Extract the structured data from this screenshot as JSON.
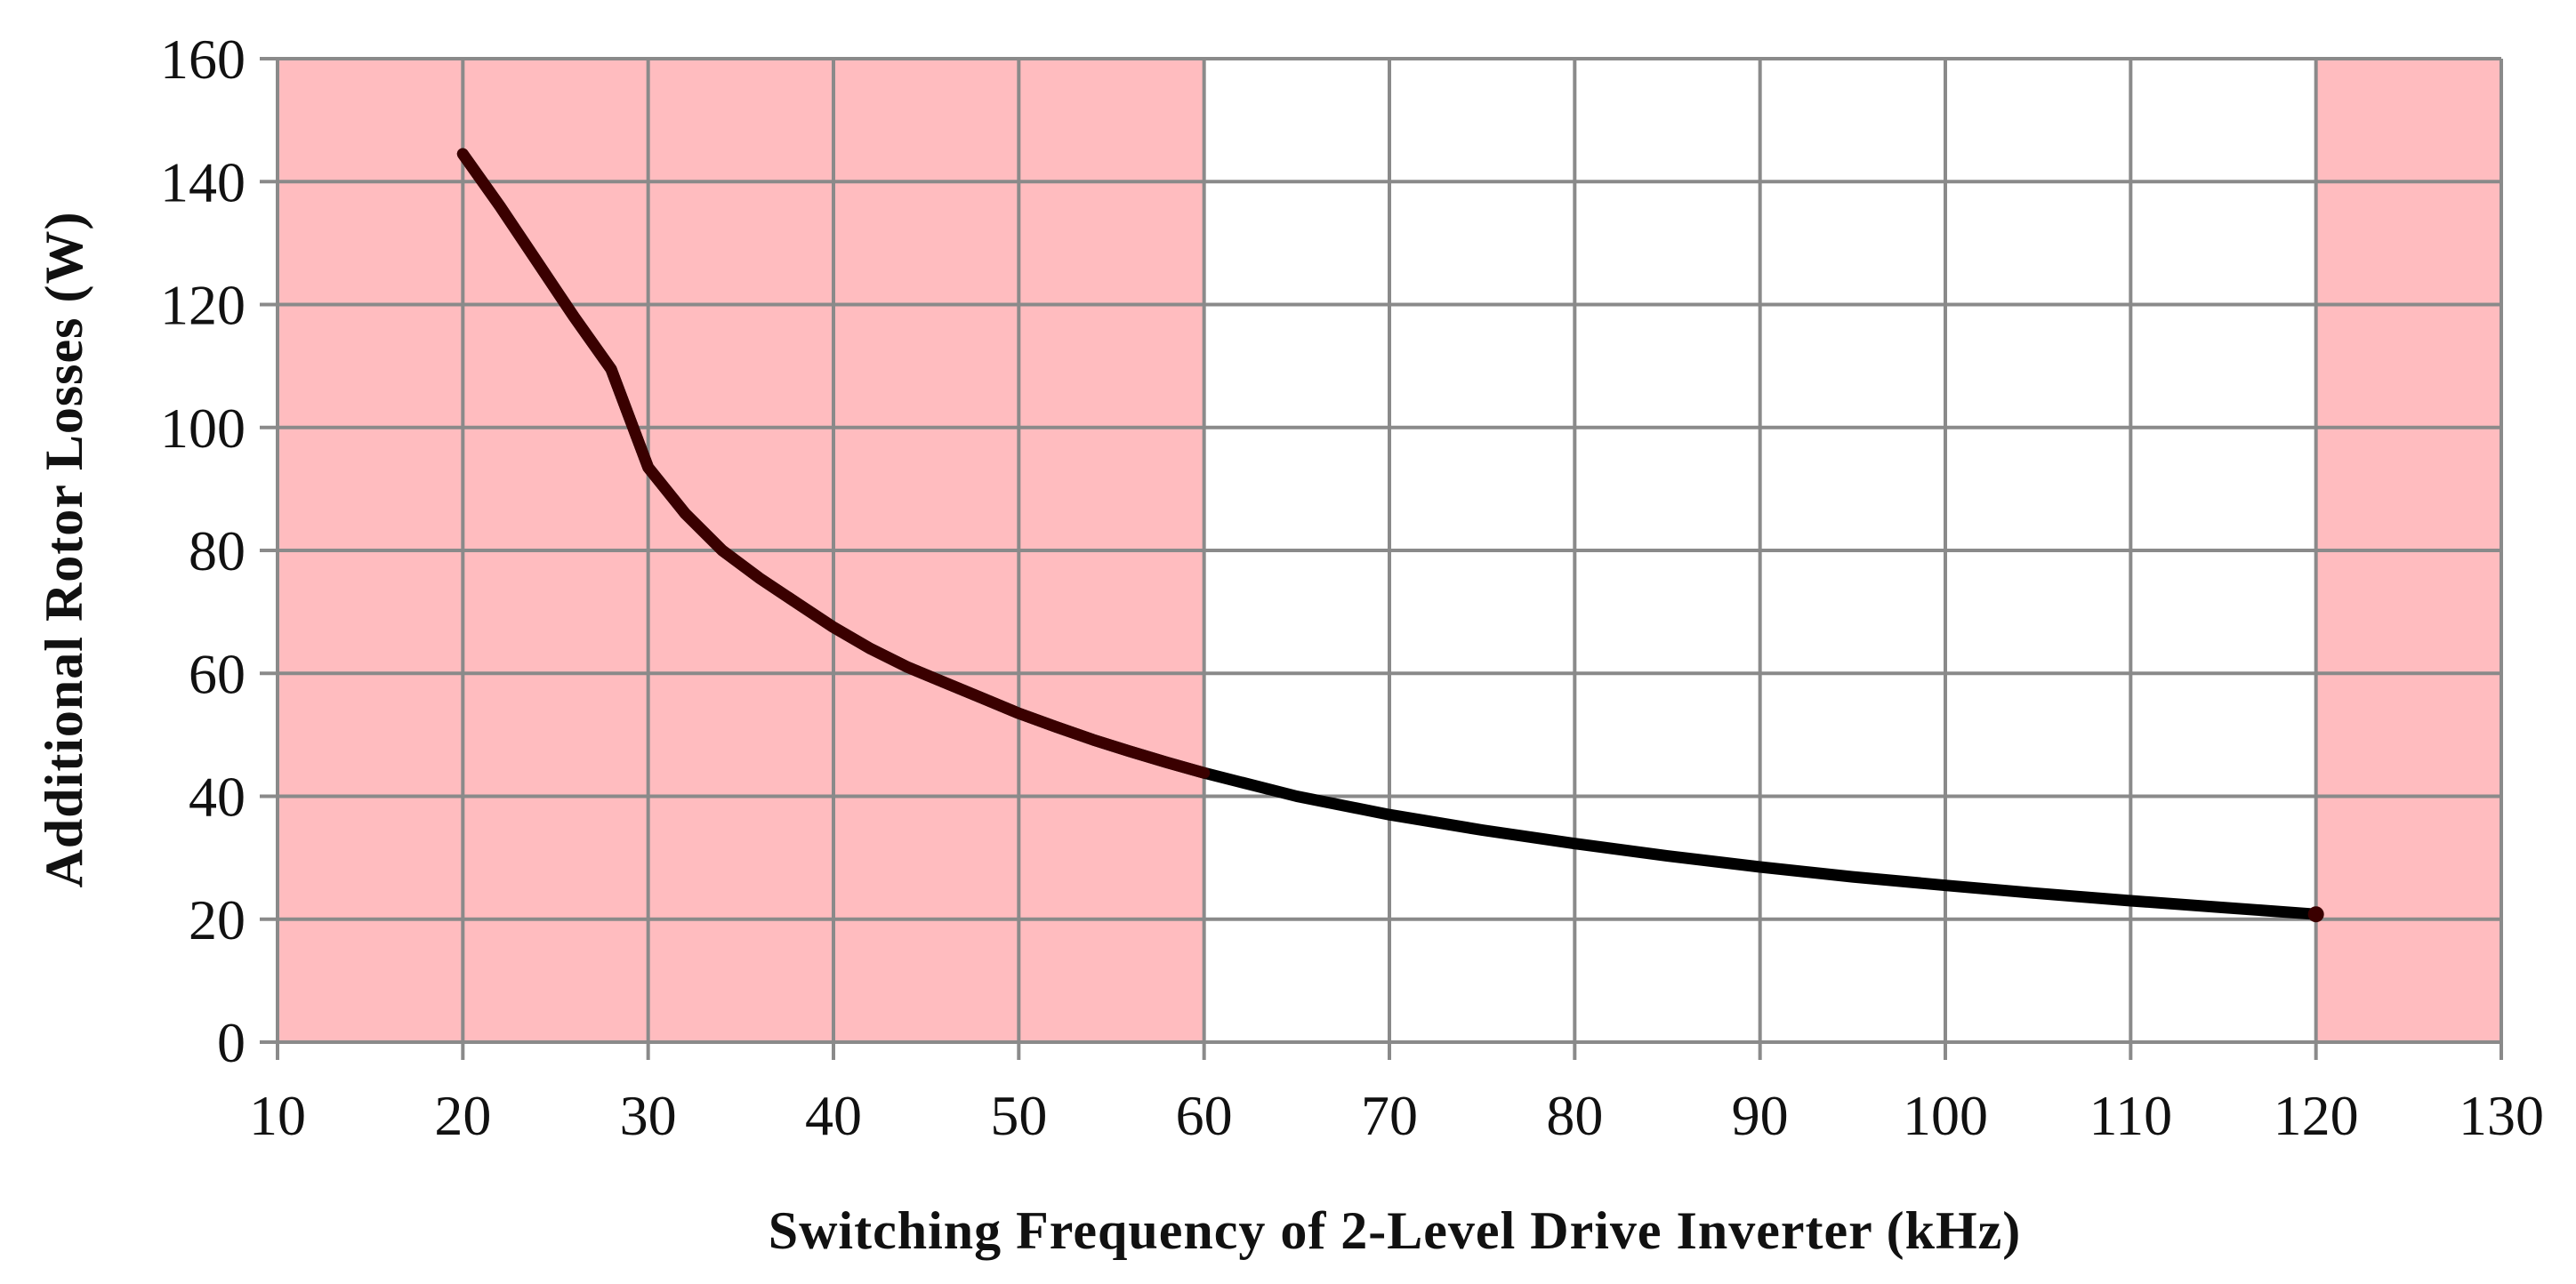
{
  "chart_data": {
    "type": "line",
    "title": "",
    "xlabel": "Switching Frequency of 2-Level Drive Inverter (kHz)",
    "ylabel": "Additional Rotor Losses (W)",
    "xlim": [
      10,
      130
    ],
    "ylim": [
      0,
      160
    ],
    "x_ticks": [
      10,
      20,
      30,
      40,
      50,
      60,
      70,
      80,
      90,
      100,
      110,
      120,
      130
    ],
    "y_ticks": [
      0,
      20,
      40,
      60,
      80,
      100,
      120,
      140,
      160
    ],
    "x_tick_labels": [
      "10",
      "20",
      "30",
      "40",
      "50",
      "60",
      "70",
      "80",
      "90",
      "100",
      "110",
      "120",
      "130"
    ],
    "y_tick_labels": [
      "0",
      "20",
      "40",
      "60",
      "80",
      "100",
      "120",
      "140",
      "160"
    ],
    "grid": true,
    "shaded_regions": [
      {
        "x_start": 10,
        "x_end": 60,
        "color": "#ffbcbf"
      },
      {
        "x_start": 120,
        "x_end": 130,
        "color": "#ffbcbf"
      }
    ],
    "series": [
      {
        "name": "Additional Rotor Losses",
        "color": "#000000",
        "shaded_color": "#3a0000",
        "x": [
          20,
          22,
          24,
          26,
          28,
          30,
          32,
          34,
          36,
          38,
          40,
          42,
          44,
          46,
          48,
          50,
          52,
          54,
          56,
          58,
          60,
          65,
          70,
          75,
          80,
          85,
          90,
          95,
          100,
          105,
          110,
          115,
          120
        ],
        "values": [
          144.5,
          136,
          127,
          118,
          109.5,
          93.5,
          86,
          80,
          75.5,
          71.5,
          67.5,
          64,
          61,
          58.5,
          56,
          53.5,
          51.3,
          49.2,
          47.3,
          45.5,
          43.8,
          40,
          37,
          34.5,
          32.3,
          30.3,
          28.5,
          26.9,
          25.5,
          24.2,
          23,
          21.9,
          20.8
        ]
      }
    ]
  }
}
